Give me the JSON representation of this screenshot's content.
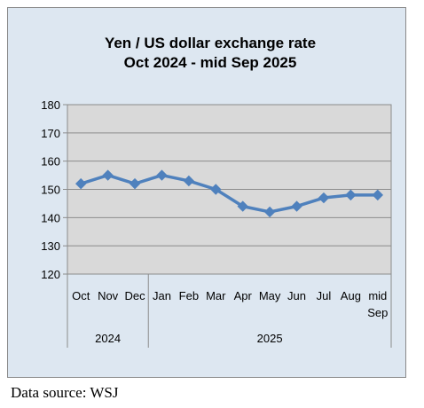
{
  "source_note": "Data source: WSJ",
  "colors": {
    "frame_bg": "#dde7f1",
    "plot_bg": "#d9d9d9",
    "series_line": "#4f81bd",
    "grid": "#8c8c8c",
    "text": "#000000"
  },
  "chart_data": {
    "type": "line",
    "title": [
      "Yen / US dollar exchange rate",
      "Oct 2024 - mid Sep 2025"
    ],
    "xlabel": "",
    "ylabel": "",
    "categories": [
      [
        "Oct"
      ],
      [
        "Nov"
      ],
      [
        "Dec"
      ],
      [
        "Jan"
      ],
      [
        "Feb"
      ],
      [
        "Mar"
      ],
      [
        "Apr"
      ],
      [
        "May"
      ],
      [
        "Jun"
      ],
      [
        "Jul"
      ],
      [
        "Aug"
      ],
      [
        "mid",
        "Sep"
      ]
    ],
    "category_groups": [
      {
        "label": "2024",
        "count": 3
      },
      {
        "label": "2025",
        "count": 9
      }
    ],
    "values": [
      152,
      155,
      152,
      155,
      153,
      150,
      144,
      142,
      144,
      147,
      148,
      148
    ],
    "ylim": [
      120,
      180
    ],
    "yticks": [
      120,
      130,
      140,
      150,
      160,
      170,
      180
    ],
    "marker": "diamond",
    "grid": true,
    "legend": "none"
  }
}
